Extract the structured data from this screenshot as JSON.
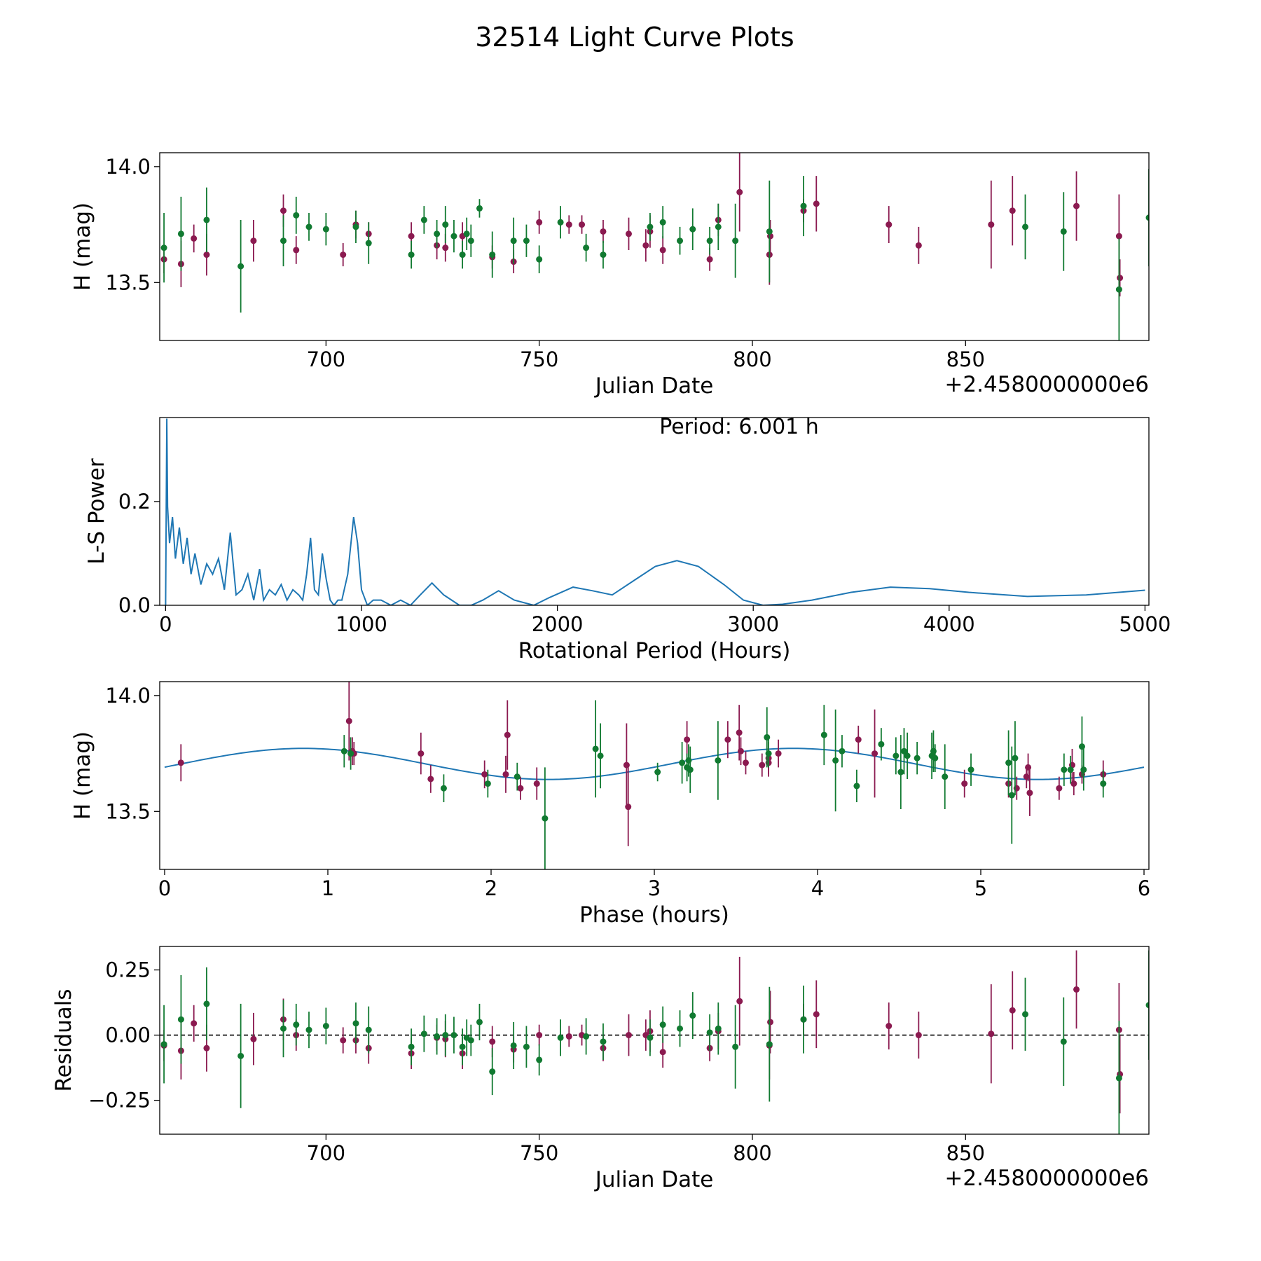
{
  "figure": {
    "title": "32514 Light Curve Plots"
  },
  "colors": {
    "magenta": "#8b1a50",
    "green": "#117a31",
    "blue": "#1f77b4",
    "black": "#000000"
  },
  "chart_data": [
    {
      "id": "lightcurve",
      "type": "scatter",
      "title": "",
      "xlabel": "Julian Date",
      "ylabel": "H (mag)",
      "x_offset_label": "+2.4580000000e6",
      "xlim": [
        661,
        893
      ],
      "ylim": [
        13.25,
        14.06
      ],
      "xticks": [
        700,
        750,
        800,
        850
      ],
      "xtick_labels": [
        "700",
        "750",
        "800",
        "850"
      ],
      "yticks": [
        13.5,
        14.0
      ],
      "ytick_labels": [
        "13.5",
        "14.0"
      ],
      "series": [
        {
          "name": "filter-magenta",
          "color": "magenta",
          "x": [
            662,
            666,
            669,
            672,
            683,
            690,
            693,
            704,
            707,
            710,
            720,
            726,
            728,
            732,
            739,
            744,
            750,
            757,
            760,
            765,
            771,
            775,
            776,
            779,
            790,
            792,
            797,
            804,
            804.2,
            812,
            815,
            832,
            839,
            856,
            861,
            876,
            886,
            886.2
          ],
          "y": [
            13.6,
            13.58,
            13.69,
            13.62,
            13.68,
            13.81,
            13.64,
            13.62,
            13.75,
            13.71,
            13.7,
            13.66,
            13.65,
            13.7,
            13.61,
            13.59,
            13.76,
            13.75,
            13.75,
            13.72,
            13.71,
            13.66,
            13.72,
            13.64,
            13.6,
            13.77,
            13.89,
            13.62,
            13.7,
            13.81,
            13.84,
            13.75,
            13.66,
            13.75,
            13.81,
            13.83,
            13.7,
            13.52
          ],
          "err": [
            0.06,
            0.1,
            0.06,
            0.09,
            0.09,
            0.07,
            0.06,
            0.05,
            0.06,
            0.05,
            0.06,
            0.06,
            0.06,
            0.06,
            0.05,
            0.05,
            0.05,
            0.04,
            0.04,
            0.05,
            0.07,
            0.07,
            0.07,
            0.06,
            0.05,
            0.07,
            0.17,
            0.13,
            0.07,
            0.05,
            0.12,
            0.08,
            0.08,
            0.19,
            0.15,
            0.15,
            0.18,
            0.08
          ]
        },
        {
          "name": "filter-green",
          "color": "green",
          "x": [
            662,
            666,
            672,
            680,
            690,
            693,
            696,
            700,
            707,
            710,
            720,
            723,
            726,
            728,
            730,
            732,
            733,
            734,
            736,
            739,
            744,
            747,
            750,
            755,
            761,
            765,
            776,
            779,
            783,
            786,
            790,
            792,
            796,
            804,
            812,
            864,
            873,
            886,
            893
          ],
          "y": [
            13.65,
            13.71,
            13.77,
            13.57,
            13.68,
            13.79,
            13.74,
            13.73,
            13.74,
            13.67,
            13.62,
            13.77,
            13.71,
            13.75,
            13.7,
            13.62,
            13.71,
            13.68,
            13.82,
            13.62,
            13.68,
            13.68,
            13.6,
            13.76,
            13.65,
            13.62,
            13.74,
            13.76,
            13.68,
            13.73,
            13.68,
            13.74,
            13.68,
            13.72,
            13.83,
            13.74,
            13.72,
            13.47,
            13.78
          ],
          "err": [
            0.15,
            0.16,
            0.14,
            0.2,
            0.11,
            0.08,
            0.06,
            0.07,
            0.07,
            0.09,
            0.06,
            0.06,
            0.06,
            0.08,
            0.07,
            0.06,
            0.07,
            0.07,
            0.04,
            0.1,
            0.1,
            0.07,
            0.06,
            0.07,
            0.06,
            0.06,
            0.06,
            0.07,
            0.06,
            0.09,
            0.06,
            0.1,
            0.16,
            0.22,
            0.13,
            0.14,
            0.17,
            0.22,
            0.21
          ]
        }
      ]
    },
    {
      "id": "periodogram",
      "type": "line",
      "title": "",
      "xlabel": "Rotational Period (Hours)",
      "ylabel": "L-S Power",
      "annotation": "Period: 6.001 h",
      "xlim": [
        -30,
        5020
      ],
      "ylim": [
        0,
        0.362
      ],
      "xticks": [
        0,
        1000,
        2000,
        3000,
        4000,
        5000
      ],
      "xtick_labels": [
        "0",
        "1000",
        "2000",
        "3000",
        "4000",
        "5000"
      ],
      "yticks": [
        0.0,
        0.2
      ],
      "ytick_labels": [
        "0.0",
        "0.2"
      ],
      "series": [
        {
          "name": "ls-power",
          "color": "blue",
          "x": [
            0,
            6,
            10,
            20,
            35,
            50,
            70,
            90,
            110,
            130,
            150,
            180,
            210,
            240,
            270,
            300,
            330,
            360,
            390,
            420,
            450,
            480,
            500,
            530,
            560,
            590,
            620,
            650,
            680,
            700,
            720,
            740,
            760,
            780,
            800,
            820,
            840,
            860,
            880,
            900,
            930,
            960,
            980,
            1000,
            1030,
            1060,
            1100,
            1150,
            1200,
            1250,
            1300,
            1360,
            1420,
            1500,
            1560,
            1620,
            1700,
            1780,
            1880,
            1960,
            2080,
            2180,
            2280,
            2400,
            2500,
            2610,
            2720,
            2850,
            2950,
            3050,
            3150,
            3300,
            3500,
            3700,
            3900,
            4100,
            4400,
            4700,
            5000
          ],
          "y": [
            0.0,
            0.36,
            0.19,
            0.12,
            0.17,
            0.09,
            0.15,
            0.08,
            0.13,
            0.06,
            0.1,
            0.04,
            0.08,
            0.06,
            0.09,
            0.03,
            0.14,
            0.02,
            0.03,
            0.06,
            0.01,
            0.07,
            0.01,
            0.03,
            0.02,
            0.04,
            0.01,
            0.03,
            0.02,
            0.01,
            0.06,
            0.13,
            0.03,
            0.02,
            0.1,
            0.05,
            0.01,
            0.0,
            0.01,
            0.01,
            0.06,
            0.17,
            0.12,
            0.03,
            0.0,
            0.01,
            0.01,
            0.0,
            0.01,
            0.0,
            0.02,
            0.043,
            0.02,
            0.0,
            0.0,
            0.01,
            0.028,
            0.01,
            0.0,
            0.015,
            0.035,
            0.028,
            0.02,
            0.05,
            0.075,
            0.086,
            0.075,
            0.04,
            0.01,
            0.0,
            0.002,
            0.01,
            0.025,
            0.035,
            0.032,
            0.025,
            0.017,
            0.02,
            0.029
          ]
        }
      ]
    },
    {
      "id": "phase",
      "type": "scatter",
      "title": "",
      "xlabel": "Phase (hours)",
      "ylabel": "H (mag)",
      "xlim": [
        -0.03,
        6.03
      ],
      "ylim": [
        13.25,
        14.06
      ],
      "xticks": [
        0,
        1,
        2,
        3,
        4,
        5,
        6
      ],
      "xtick_labels": [
        "0",
        "1",
        "2",
        "3",
        "4",
        "5",
        "6"
      ],
      "yticks": [
        13.5,
        14.0
      ],
      "ytick_labels": [
        "13.5",
        "14.0"
      ],
      "fit": {
        "name": "sinusoid-fit",
        "color": "blue",
        "mean": 13.705,
        "amplitude": 0.067,
        "period_hours": 3.0,
        "peak_phase": 0.85
      },
      "series": [
        {
          "name": "phase-magenta",
          "color": "magenta",
          "x": [
            0.1,
            1.13,
            1.15,
            1.16,
            1.57,
            1.63,
            1.96,
            2.09,
            2.1,
            2.18,
            2.28,
            2.83,
            2.84,
            3.2,
            3.45,
            3.52,
            3.53,
            3.56,
            3.66,
            3.7,
            3.7,
            3.76,
            4.25,
            4.35,
            4.9,
            5.17,
            5.22,
            5.28,
            5.29,
            5.3,
            5.48,
            5.56,
            5.57,
            5.62,
            5.75
          ],
          "y": [
            13.71,
            13.89,
            13.76,
            13.75,
            13.75,
            13.64,
            13.66,
            13.66,
            13.83,
            13.6,
            13.62,
            13.7,
            13.52,
            13.81,
            13.81,
            13.84,
            13.76,
            13.71,
            13.7,
            13.71,
            13.73,
            13.75,
            13.81,
            13.75,
            13.62,
            13.62,
            13.6,
            13.65,
            13.69,
            13.58,
            13.6,
            13.7,
            13.62,
            13.66,
            13.66
          ],
          "err": [
            0.08,
            0.17,
            0.06,
            0.05,
            0.09,
            0.06,
            0.06,
            0.08,
            0.15,
            0.05,
            0.07,
            0.18,
            0.17,
            0.08,
            0.08,
            0.12,
            0.06,
            0.05,
            0.05,
            0.06,
            0.07,
            0.06,
            0.06,
            0.19,
            0.06,
            0.06,
            0.05,
            0.05,
            0.06,
            0.1,
            0.05,
            0.07,
            0.05,
            0.04,
            0.06
          ]
        },
        {
          "name": "phase-green",
          "color": "green",
          "x": [
            1.1,
            1.14,
            1.71,
            1.98,
            2.16,
            2.33,
            2.64,
            2.67,
            3.02,
            3.17,
            3.2,
            3.21,
            3.22,
            3.39,
            3.69,
            3.7,
            4.04,
            4.11,
            4.15,
            4.24,
            4.39,
            4.48,
            4.51,
            4.53,
            4.55,
            4.61,
            4.7,
            4.71,
            4.72,
            4.78,
            4.94,
            5.17,
            5.19,
            5.21,
            5.51,
            5.55,
            5.62,
            5.63,
            5.75
          ],
          "y": [
            13.76,
            13.75,
            13.6,
            13.62,
            13.65,
            13.47,
            13.77,
            13.74,
            13.67,
            13.71,
            13.69,
            13.72,
            13.68,
            13.72,
            13.82,
            13.75,
            13.83,
            13.72,
            13.76,
            13.61,
            13.79,
            13.74,
            13.67,
            13.76,
            13.74,
            13.73,
            13.74,
            13.76,
            13.73,
            13.65,
            13.68,
            13.71,
            13.57,
            13.73,
            13.68,
            13.68,
            13.78,
            13.68,
            13.62
          ],
          "err": [
            0.07,
            0.07,
            0.06,
            0.06,
            0.06,
            0.22,
            0.21,
            0.14,
            0.04,
            0.09,
            0.06,
            0.07,
            0.1,
            0.17,
            0.13,
            0.06,
            0.13,
            0.22,
            0.07,
            0.07,
            0.07,
            0.08,
            0.16,
            0.1,
            0.1,
            0.07,
            0.1,
            0.09,
            0.06,
            0.14,
            0.07,
            0.14,
            0.21,
            0.16,
            0.07,
            0.06,
            0.13,
            0.09,
            0.06
          ]
        }
      ]
    },
    {
      "id": "residuals",
      "type": "scatter",
      "title": "",
      "xlabel": "Julian Date",
      "ylabel": "Residuals",
      "x_offset_label": "+2.4580000000e6",
      "xlim": [
        661,
        893
      ],
      "ylim": [
        -0.38,
        0.34
      ],
      "xticks": [
        700,
        750,
        800,
        850
      ],
      "xtick_labels": [
        "700",
        "750",
        "800",
        "850"
      ],
      "yticks": [
        -0.25,
        0.0,
        0.25
      ],
      "ytick_labels": [
        "−0.25",
        "0.00",
        "0.25"
      ],
      "reference_line": {
        "y": 0.0,
        "style": "dashed",
        "color": "black"
      },
      "series": [
        {
          "name": "resid-magenta",
          "color": "magenta",
          "x": [
            662,
            666,
            669,
            672,
            683,
            690,
            693,
            704,
            707,
            710,
            720,
            726,
            728,
            732,
            739,
            744,
            750,
            757,
            760,
            765,
            771,
            775,
            776,
            779,
            790,
            792,
            797,
            804,
            804.2,
            812,
            815,
            832,
            839,
            856,
            861,
            876,
            886,
            886.2
          ],
          "y": [
            -0.04,
            -0.06,
            0.045,
            -0.05,
            -0.015,
            0.06,
            0.0,
            -0.02,
            -0.02,
            -0.05,
            -0.07,
            -0.01,
            -0.015,
            -0.07,
            -0.025,
            -0.055,
            0.0,
            -0.005,
            0.0,
            -0.05,
            0.0,
            0.0,
            0.015,
            -0.065,
            -0.05,
            0.015,
            0.13,
            -0.04,
            0.05,
            0.06,
            0.08,
            0.035,
            0.0,
            0.005,
            0.095,
            0.175,
            0.02,
            -0.15
          ],
          "err": [
            0.06,
            0.11,
            0.07,
            0.09,
            0.1,
            0.08,
            0.06,
            0.05,
            0.05,
            0.06,
            0.06,
            0.05,
            0.07,
            0.06,
            0.06,
            0.05,
            0.04,
            0.04,
            0.04,
            0.05,
            0.08,
            0.06,
            0.08,
            0.06,
            0.05,
            0.07,
            0.17,
            0.13,
            0.12,
            0.06,
            0.13,
            0.09,
            0.09,
            0.19,
            0.15,
            0.15,
            0.18,
            0.15
          ]
        },
        {
          "name": "resid-green",
          "color": "green",
          "x": [
            662,
            666,
            672,
            680,
            690,
            693,
            696,
            700,
            707,
            710,
            720,
            723,
            726,
            728,
            730,
            732,
            733,
            734,
            736,
            739,
            744,
            747,
            750,
            755,
            761,
            765,
            776,
            779,
            783,
            786,
            790,
            792,
            796,
            804,
            812,
            864,
            873,
            886,
            893
          ],
          "y": [
            -0.035,
            0.06,
            0.12,
            -0.08,
            0.025,
            0.04,
            0.02,
            0.035,
            0.045,
            0.02,
            -0.045,
            0.005,
            -0.005,
            0.0,
            0.0,
            -0.045,
            -0.01,
            -0.02,
            0.05,
            -0.14,
            -0.04,
            -0.045,
            -0.095,
            -0.01,
            -0.005,
            -0.025,
            -0.01,
            0.04,
            0.025,
            0.075,
            0.01,
            0.025,
            -0.045,
            -0.035,
            0.06,
            0.08,
            -0.025,
            -0.165,
            0.115
          ],
          "err": [
            0.15,
            0.17,
            0.14,
            0.2,
            0.11,
            0.08,
            0.07,
            0.07,
            0.08,
            0.09,
            0.07,
            0.07,
            0.07,
            0.08,
            0.07,
            0.07,
            0.07,
            0.06,
            0.07,
            0.09,
            0.09,
            0.08,
            0.06,
            0.07,
            0.07,
            0.07,
            0.07,
            0.07,
            0.07,
            0.09,
            0.07,
            0.1,
            0.16,
            0.22,
            0.13,
            0.14,
            0.17,
            0.22,
            0.21
          ]
        }
      ]
    }
  ]
}
